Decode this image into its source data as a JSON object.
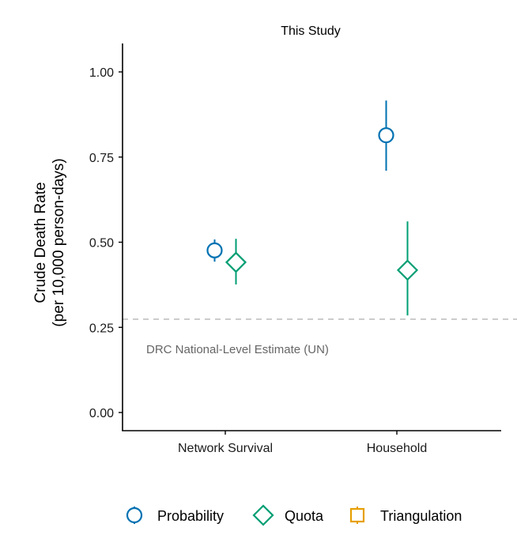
{
  "chart_data": {
    "type": "scatter",
    "title": "This Study",
    "xlabel": "",
    "ylabel_lines": [
      "Crude Death Rate",
      "(per 10,000 person-days)"
    ],
    "categories": [
      "Network Survival",
      "Household"
    ],
    "ylim": [
      -0.05,
      1.08
    ],
    "yticks": [
      0.0,
      0.25,
      0.5,
      0.75,
      1.0
    ],
    "ytick_labels": [
      "0.00",
      "0.25",
      "0.50",
      "0.75",
      "1.00"
    ],
    "grid": false,
    "series": [
      {
        "name": "Probability",
        "marker": "circle",
        "color": "#0072B2",
        "values": [
          0.476,
          0.814
        ],
        "lower": [
          0.443,
          0.71
        ],
        "upper": [
          0.508,
          0.916
        ]
      },
      {
        "name": "Quota",
        "marker": "diamond",
        "color": "#009E73",
        "values": [
          0.441,
          0.418
        ],
        "lower": [
          0.376,
          0.285
        ],
        "upper": [
          0.51,
          0.561
        ]
      },
      {
        "name": "Triangulation",
        "marker": "square",
        "color": "#E69F00",
        "values": [
          null,
          null
        ],
        "lower": [
          null,
          null
        ],
        "upper": [
          null,
          null
        ]
      }
    ],
    "reference_line": {
      "value": 0.274,
      "label": "DRC National-Level Estimate (UN)",
      "color": "#c0c0c0",
      "style": "dashed"
    },
    "legend_position": "bottom"
  }
}
